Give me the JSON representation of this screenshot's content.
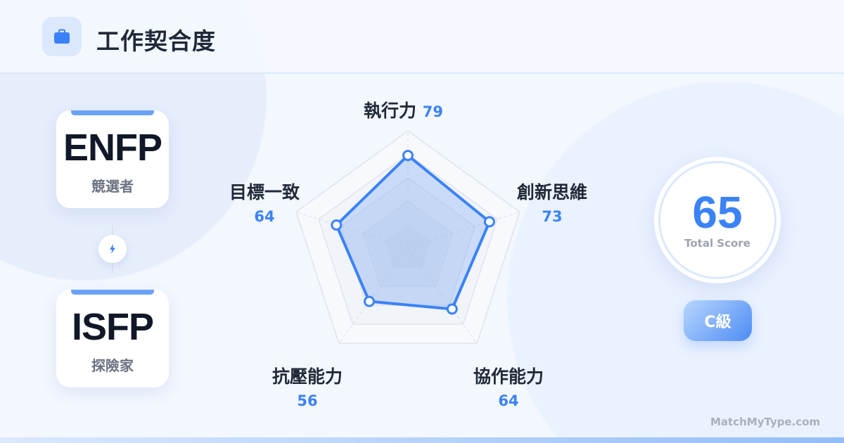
{
  "header": {
    "title": "工作契合度",
    "icon": "briefcase-icon"
  },
  "types": [
    {
      "code": "ENFP",
      "name": "競選者"
    },
    {
      "code": "ISFP",
      "name": "探險家"
    }
  ],
  "connector_icon": "lightning-icon",
  "chart_data": {
    "type": "radar",
    "categories": [
      "執行力",
      "創新思維",
      "協作能力",
      "抗壓能力",
      "目標一致"
    ],
    "values": [
      79,
      73,
      64,
      56,
      64
    ],
    "range": [
      0,
      100
    ],
    "grid_levels": 5,
    "color": "#3b82f6"
  },
  "score": {
    "value": "65",
    "label": "Total Score"
  },
  "grade": "C級",
  "footer": "MatchMyType.com",
  "colors": {
    "accent": "#3b82f6",
    "text": "#1f2937"
  }
}
